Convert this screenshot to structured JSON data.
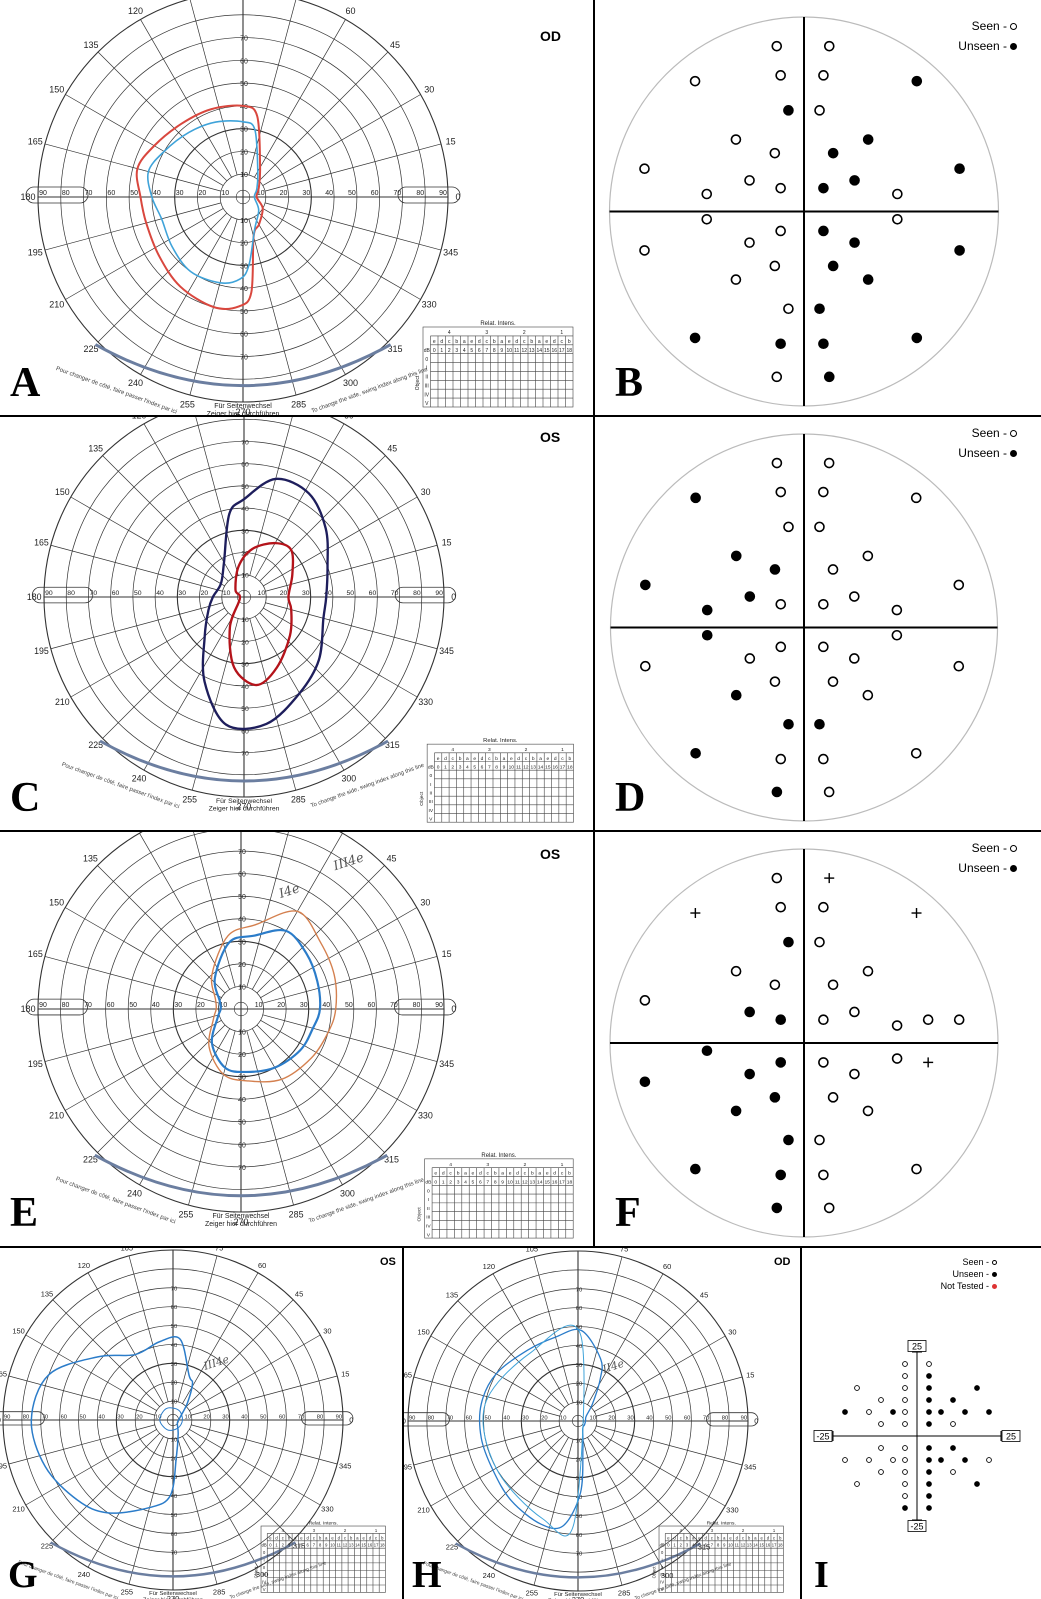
{
  "panels": {
    "A": {
      "label": "A",
      "eye": "OD"
    },
    "B": {
      "label": "B"
    },
    "C": {
      "label": "C",
      "eye": "OS"
    },
    "D": {
      "label": "D"
    },
    "E": {
      "label": "E",
      "eye": "OS"
    },
    "F": {
      "label": "F"
    },
    "G": {
      "label": "G",
      "eye": "OS"
    },
    "H": {
      "label": "H",
      "eye": "OD"
    },
    "I": {
      "label": "I"
    }
  },
  "legend": {
    "seen": "Seen -",
    "unseen": "Unseen -",
    "not_tested": "Not Tested -"
  },
  "perimeter": {
    "angle_labels": [
      "0",
      "15",
      "30",
      "45",
      "60",
      "75",
      "90",
      "105",
      "120",
      "135",
      "150",
      "165",
      "180",
      "195",
      "210",
      "225",
      "240",
      "255",
      "270",
      "285",
      "300",
      "315",
      "330",
      "345"
    ],
    "radial_labels": [
      "10",
      "20",
      "30",
      "40",
      "50",
      "60",
      "70"
    ],
    "horizontal_labels": [
      "90",
      "80",
      "70",
      "60",
      "50",
      "40",
      "30",
      "20",
      "10",
      "10",
      "20",
      "30",
      "40",
      "50",
      "60",
      "70",
      "80",
      "90"
    ],
    "footer_main": "Für Seitenwechsel",
    "footer_sub": "Zeiger hier durchführen",
    "footer_left": "Pour changer de côté, faire passer l'index par ici",
    "footer_right": "To change the side, swing index along this line",
    "intensity_title": "Relat. Intens.",
    "intensity_groups": [
      "4",
      "3",
      "2",
      "1"
    ],
    "intensity_letters": [
      "e",
      "d",
      "c",
      "b",
      "a",
      "e",
      "d",
      "c",
      "b",
      "a",
      "e",
      "d",
      "c",
      "b",
      "a",
      "e",
      "d",
      "c",
      "b"
    ],
    "db_label": "dB",
    "db_values": [
      "0",
      "1",
      "2",
      "3",
      "4",
      "5",
      "6",
      "7",
      "8",
      "9",
      "10",
      "11",
      "12",
      "13",
      "14",
      "15",
      "16",
      "17",
      "18"
    ],
    "object_label": "Object",
    "object_rows": [
      "0",
      "I",
      "II",
      "III",
      "IV",
      "V"
    ]
  },
  "handwriting": {
    "E1": "III4e",
    "E2": "I4e",
    "G": "III4e",
    "H": "II4e"
  },
  "grid_I": {
    "top": "25",
    "bottom": "-25",
    "left": "-25",
    "right": "25"
  },
  "colors": {
    "red": "#d9473e",
    "light_blue": "#3fa3d9",
    "navy": "#1e1e5c",
    "dark_red": "#b4131a",
    "orange": "#d4804f",
    "blue": "#2b7cc9"
  }
}
